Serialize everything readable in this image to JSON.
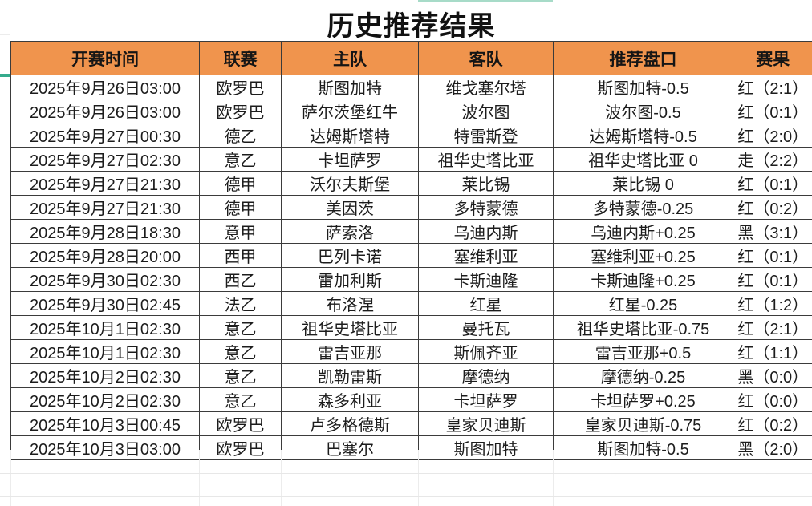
{
  "page_title": "历史推荐结果",
  "colors": {
    "header_bg": "#F0944D",
    "result_red": "#C03A2C",
    "result_draw_orange": "#E0812C",
    "result_black": "#212121",
    "selection_teal": "#35AB8C"
  },
  "table": {
    "columns": [
      "开赛时间",
      "联赛",
      "主队",
      "客队",
      "推荐盘口",
      "赛果"
    ],
    "rows": [
      {
        "time": "2025年9月26日03:00",
        "league": "欧罗巴",
        "home": "斯图加特",
        "away": "维戈塞尔塔",
        "handicap": "斯图加特-0.5",
        "result": "红（2:1）",
        "result_color": "red"
      },
      {
        "time": "2025年9月26日03:00",
        "league": "欧罗巴",
        "home": "萨尔茨堡红牛",
        "away": "波尔图",
        "handicap": "波尔图-0.5",
        "result": "红（0:1）",
        "result_color": "red"
      },
      {
        "time": "2025年9月27日00:30",
        "league": "德乙",
        "home": "达姆斯塔特",
        "away": "特雷斯登",
        "handicap": "达姆斯塔特-0.5",
        "result": "红（2:0）",
        "result_color": "red"
      },
      {
        "time": "2025年9月27日02:30",
        "league": "意乙",
        "home": "卡坦萨罗",
        "away": "祖华史塔比亚",
        "handicap": "祖华史塔比亚 0",
        "result": "走（2:2）",
        "result_color": "draw"
      },
      {
        "time": "2025年9月27日21:30",
        "league": "德甲",
        "home": "沃尔夫斯堡",
        "away": "莱比锡",
        "handicap": "莱比锡 0",
        "result": "红（0:1）",
        "result_color": "red"
      },
      {
        "time": "2025年9月27日21:30",
        "league": "德甲",
        "home": "美因茨",
        "away": "多特蒙德",
        "handicap": "多特蒙德-0.25",
        "result": "红（0:2）",
        "result_color": "red"
      },
      {
        "time": "2025年9月28日18:30",
        "league": "意甲",
        "home": "萨索洛",
        "away": "乌迪内斯",
        "handicap": "乌迪内斯+0.25",
        "result": "黑（3:1）",
        "result_color": "black"
      },
      {
        "time": "2025年9月28日20:00",
        "league": "西甲",
        "home": "巴列卡诺",
        "away": "塞维利亚",
        "handicap": "塞维利亚+0.25",
        "result": "红（0:1）",
        "result_color": "red"
      },
      {
        "time": "2025年9月30日02:30",
        "league": "西乙",
        "home": "雷加利斯",
        "away": "卡斯迪隆",
        "handicap": "卡斯迪隆+0.25",
        "result": "红（0:1）",
        "result_color": "red"
      },
      {
        "time": "2025年9月30日02:45",
        "league": "法乙",
        "home": "布洛涅",
        "away": "红星",
        "handicap": "红星-0.25",
        "result": "红（1:2）",
        "result_color": "red"
      },
      {
        "time": "2025年10月1日02:30",
        "league": "意乙",
        "home": "祖华史塔比亚",
        "away": "曼托瓦",
        "handicap": "祖华史塔比亚-0.75",
        "result": "红（2:1）",
        "result_color": "red"
      },
      {
        "time": "2025年10月1日02:30",
        "league": "意乙",
        "home": "雷吉亚那",
        "away": "斯佩齐亚",
        "handicap": "雷吉亚那+0.5",
        "result": "红（1:1）",
        "result_color": "red"
      },
      {
        "time": "2025年10月2日02:30",
        "league": "意乙",
        "home": "凯勒雷斯",
        "away": "摩德纳",
        "handicap": "摩德纳-0.25",
        "result": "黑（0:0）",
        "result_color": "black"
      },
      {
        "time": "2025年10月2日02:30",
        "league": "意乙",
        "home": "森多利亚",
        "away": "卡坦萨罗",
        "handicap": "卡坦萨罗+0.25",
        "result": "红（0:0）",
        "result_color": "red"
      },
      {
        "time": "2025年10月3日00:45",
        "league": "欧罗巴",
        "home": "卢多格德斯",
        "away": "皇家贝迪斯",
        "handicap": "皇家贝迪斯-0.75",
        "result": "红（0:2）",
        "result_color": "red"
      },
      {
        "time": "2025年10月3日03:00",
        "league": "欧罗巴",
        "home": "巴塞尔",
        "away": "斯图加特",
        "handicap": "斯图加特-0.5",
        "result": "黑（2:0）",
        "result_color": "black"
      }
    ]
  }
}
